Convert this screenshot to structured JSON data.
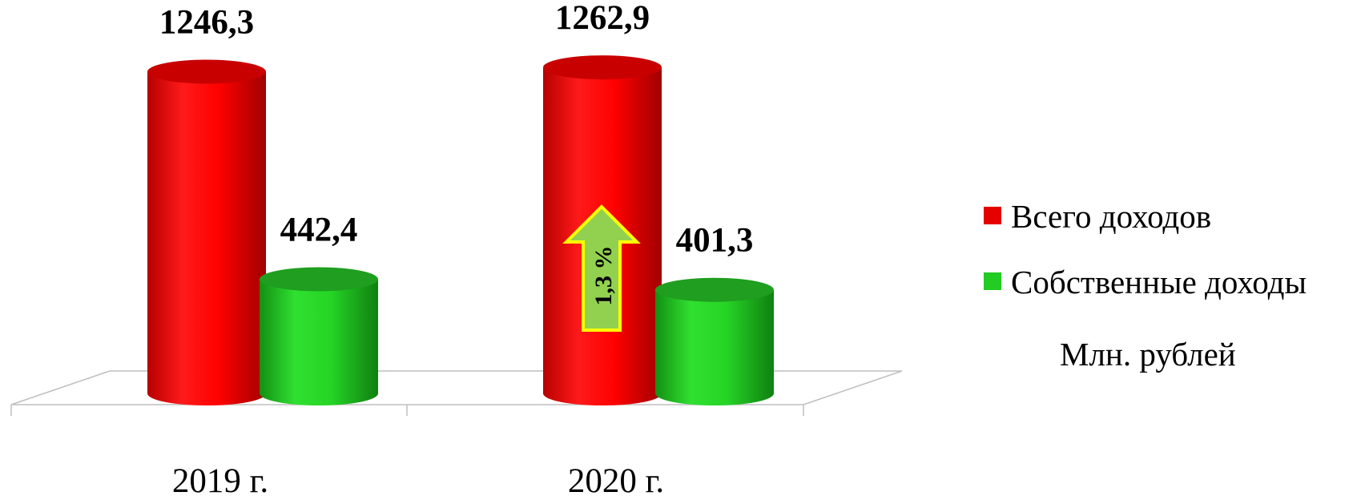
{
  "chart_data": {
    "type": "bar",
    "categories": [
      "2019 г.",
      "2020 г."
    ],
    "series": [
      {
        "name": "Всего доходов",
        "values": [
          1246.3,
          1262.9
        ],
        "labels": [
          "1246,3",
          "1262,9"
        ],
        "color": "#e60000"
      },
      {
        "name": "Собственные доходы",
        "values": [
          442.4,
          401.3
        ],
        "labels": [
          "442,4",
          "401,3"
        ],
        "color": "#22cc22"
      }
    ],
    "annotation": {
      "text": "1,3 %",
      "category": "2020 г.",
      "direction": "up",
      "fill": "#92d050",
      "border": "#ffff00"
    },
    "unit": "Млн. рублей",
    "legend_position": "right",
    "grid": false
  }
}
